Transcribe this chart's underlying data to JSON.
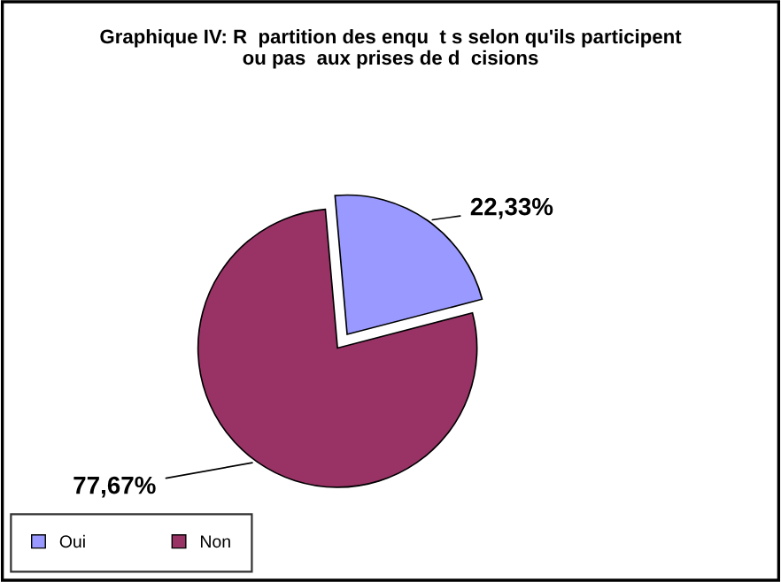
{
  "chart_data": {
    "type": "pie",
    "title": "Graphique IV: R  partition des enqu  t s selon qu'ils participent\nou pas  aux prises de d  cisions",
    "categories": [
      "Oui",
      "Non"
    ],
    "values": [
      22.33,
      77.67
    ],
    "colors": [
      "#9999ff",
      "#993366"
    ],
    "value_labels": [
      "22,33%",
      "77,67%"
    ],
    "legend": "bottom left"
  }
}
